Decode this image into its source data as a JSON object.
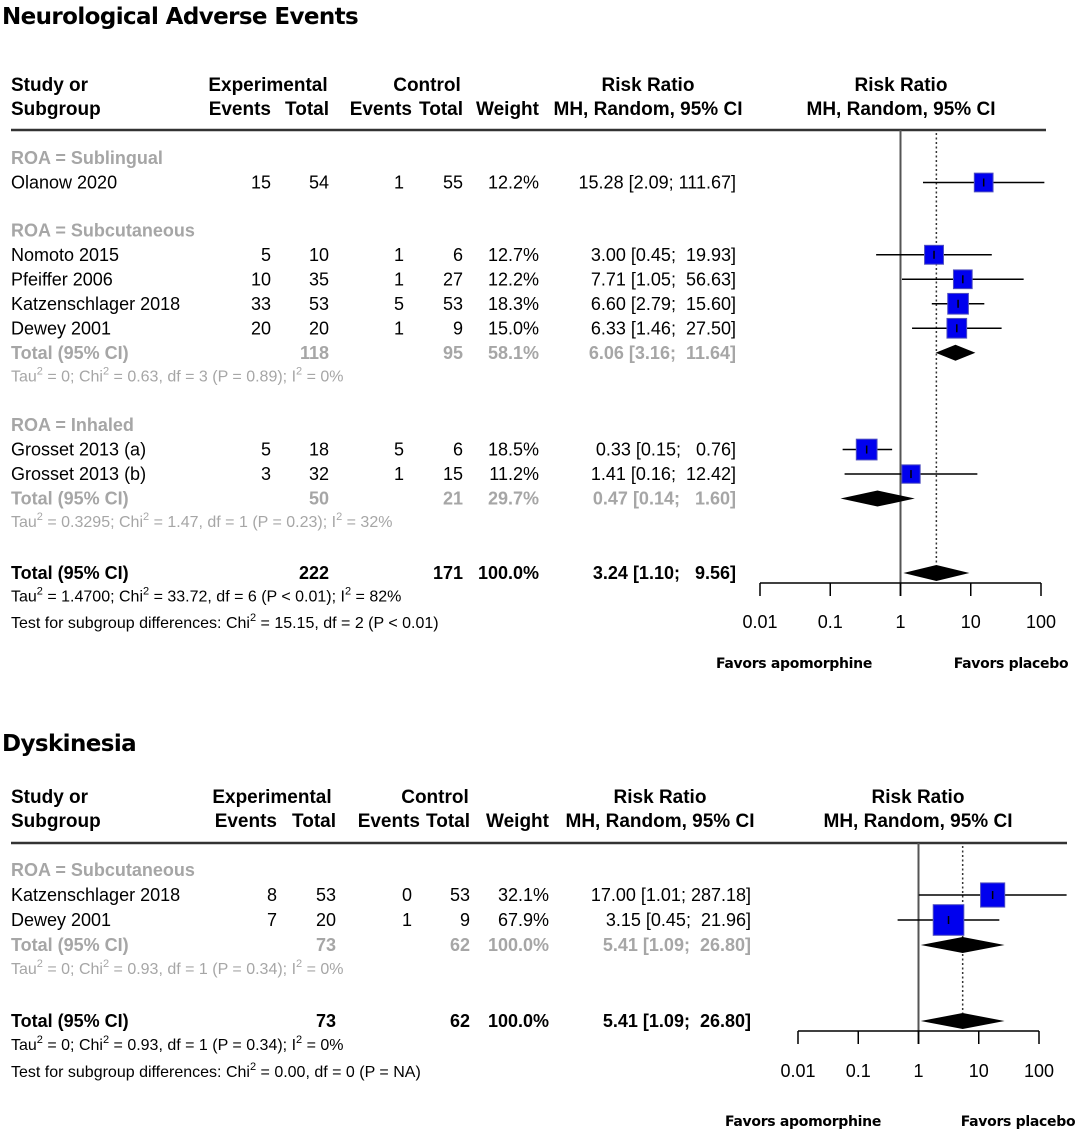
{
  "colors": {
    "square": "#0000ee",
    "diamond": "#000000",
    "subgroup_text": "#a6a6a6",
    "axis": "#000000",
    "null_line": "#555555"
  },
  "chart_data": [
    {
      "type": "forest",
      "title": "Neurological Adverse Events",
      "headers": {
        "study": [
          "Study or",
          "Subgroup"
        ],
        "experimental": "Experimental",
        "control": "Control",
        "events": "Events",
        "total": "Total",
        "weight": "Weight",
        "rr_text": [
          "Risk Ratio",
          "MH, Random, 95% CI"
        ],
        "rr_plot": [
          "Risk Ratio",
          "MH, Random, 95% CI"
        ]
      },
      "groups": [
        {
          "label": "ROA = Sublingual",
          "studies": [
            {
              "name": "Olanow 2020",
              "exp_events": "15",
              "exp_total": "54",
              "ctl_events": "1",
              "ctl_total": "55",
              "weight": "12.2%",
              "rr_text": "15.28 [2.09; 111.67]",
              "rr": 15.28,
              "lo": 2.09,
              "hi": 111.67,
              "w": 12.2
            }
          ],
          "total": null,
          "het": null
        },
        {
          "label": "ROA = Subcutaneous",
          "studies": [
            {
              "name": "Nomoto 2015",
              "exp_events": "5",
              "exp_total": "10",
              "ctl_events": "1",
              "ctl_total": "6",
              "weight": "12.7%",
              "rr_text": "3.00 [0.45;  19.93]",
              "rr": 3.0,
              "lo": 0.45,
              "hi": 19.93,
              "w": 12.7
            },
            {
              "name": "Pfeiffer 2006",
              "exp_events": "10",
              "exp_total": "35",
              "ctl_events": "1",
              "ctl_total": "27",
              "weight": "12.2%",
              "rr_text": "7.71 [1.05;  56.63]",
              "rr": 7.71,
              "lo": 1.05,
              "hi": 56.63,
              "w": 12.2
            },
            {
              "name": "Katzenschlager 2018",
              "exp_events": "33",
              "exp_total": "53",
              "ctl_events": "5",
              "ctl_total": "53",
              "weight": "18.3%",
              "rr_text": "6.60 [2.79;  15.60]",
              "rr": 6.6,
              "lo": 2.79,
              "hi": 15.6,
              "w": 18.3
            },
            {
              "name": "Dewey 2001",
              "exp_events": "20",
              "exp_total": "20",
              "ctl_events": "1",
              "ctl_total": "9",
              "weight": "15.0%",
              "rr_text": "6.33 [1.46;  27.50]",
              "rr": 6.33,
              "lo": 1.46,
              "hi": 27.5,
              "w": 15.0
            }
          ],
          "total": {
            "label": "Total (95% CI)",
            "exp_total": "118",
            "ctl_total": "95",
            "weight": "58.1%",
            "rr_text": "6.06 [3.16;  11.64]",
            "rr": 6.06,
            "lo": 3.16,
            "hi": 11.64
          },
          "het": {
            "tau": "0",
            "chi": "0.63",
            "rest": ", df = 3 (P = 0.89); I",
            "i2": "0%"
          }
        },
        {
          "label": "ROA = Inhaled",
          "studies": [
            {
              "name": "Grosset 2013 (a)",
              "exp_events": "5",
              "exp_total": "18",
              "ctl_events": "5",
              "ctl_total": "6",
              "weight": "18.5%",
              "rr_text": "0.33 [0.15;   0.76]",
              "rr": 0.33,
              "lo": 0.15,
              "hi": 0.76,
              "w": 18.5
            },
            {
              "name": "Grosset 2013 (b)",
              "exp_events": "3",
              "exp_total": "32",
              "ctl_events": "1",
              "ctl_total": "15",
              "weight": "11.2%",
              "rr_text": "1.41 [0.16;  12.42]",
              "rr": 1.41,
              "lo": 0.16,
              "hi": 12.42,
              "w": 11.2
            }
          ],
          "total": {
            "label": "Total (95% CI)",
            "exp_total": "50",
            "ctl_total": "21",
            "weight": "29.7%",
            "rr_text": "0.47 [0.14;   1.60]",
            "rr": 0.47,
            "lo": 0.14,
            "hi": 1.6
          },
          "het": {
            "tau": "0.3295",
            "chi": "1.47",
            "rest": ", df = 1 (P = 0.23); I",
            "i2": "32%"
          }
        }
      ],
      "overall": {
        "label": "Total (95% CI)",
        "exp_total": "222",
        "ctl_total": "171",
        "weight": "100.0%",
        "rr_text": "3.24 [1.10;   9.56]",
        "rr": 3.24,
        "lo": 1.1,
        "hi": 9.56
      },
      "overall_het": {
        "tau": "1.4700",
        "chi": "33.72",
        "rest": ", df = 6 (P < 0.01); I",
        "i2": "82%"
      },
      "subgroup_test": {
        "prefix": "Test for subgroup differences: Chi",
        "rest": " = 15.15, df = 2 (P < 0.01)"
      },
      "x_scale": "log10",
      "xlim": [
        0.01,
        100
      ],
      "xticks": [
        0.01,
        0.1,
        1,
        10,
        100
      ],
      "xtick_labels": [
        "0.01",
        "0.1",
        "1",
        "10",
        "100"
      ],
      "favors_left": "Favors apomorphine",
      "favors_right": "Favors placebo"
    },
    {
      "type": "forest",
      "title": "Dyskinesia",
      "headers": {
        "study": [
          "Study or",
          "Subgroup"
        ],
        "experimental": "Experimental",
        "control": "Control",
        "events": "Events",
        "total": "Total",
        "weight": "Weight",
        "rr_text": [
          "Risk Ratio",
          "MH, Random, 95% CI"
        ],
        "rr_plot": [
          "Risk Ratio",
          "MH, Random, 95% CI"
        ]
      },
      "groups": [
        {
          "label": "ROA = Subcutaneous",
          "studies": [
            {
              "name": "Katzenschlager 2018",
              "exp_events": "8",
              "exp_total": "53",
              "ctl_events": "0",
              "ctl_total": "53",
              "weight": "32.1%",
              "rr_text": "17.00 [1.01; 287.18]",
              "rr": 17.0,
              "lo": 1.01,
              "hi": 287.18,
              "w": 32.1
            },
            {
              "name": "Dewey 2001",
              "exp_events": "7",
              "exp_total": "20",
              "ctl_events": "1",
              "ctl_total": "9",
              "weight": "67.9%",
              "rr_text": "3.15 [0.45;  21.96]",
              "rr": 3.15,
              "lo": 0.45,
              "hi": 21.96,
              "w": 67.9
            }
          ],
          "total": {
            "label": "Total (95% CI)",
            "exp_total": "73",
            "ctl_total": "62",
            "weight": "100.0%",
            "rr_text": "5.41 [1.09;  26.80]",
            "rr": 5.41,
            "lo": 1.09,
            "hi": 26.8
          },
          "het": {
            "tau": "0",
            "chi": "0.93",
            "rest": ", df = 1 (P = 0.34); I",
            "i2": "0%"
          }
        }
      ],
      "overall": {
        "label": "Total (95% CI)",
        "exp_total": "73",
        "ctl_total": "62",
        "weight": "100.0%",
        "rr_text": "5.41 [1.09;  26.80]",
        "rr": 5.41,
        "lo": 1.09,
        "hi": 26.8
      },
      "overall_het": {
        "tau": "0",
        "chi": "0.93",
        "rest": ", df = 1 (P = 0.34); I",
        "i2": "0%"
      },
      "subgroup_test": {
        "prefix": "Test for subgroup differences: Chi",
        "rest": " = 0.00, df = 0 (P = NA)"
      },
      "x_scale": "log10",
      "xlim": [
        0.01,
        100
      ],
      "xticks": [
        0.01,
        0.1,
        1,
        10,
        100
      ],
      "xtick_labels": [
        "0.01",
        "0.1",
        "1",
        "10",
        "100"
      ],
      "favors_left": "Favors apomorphine",
      "favors_right": "Favors placebo"
    }
  ]
}
